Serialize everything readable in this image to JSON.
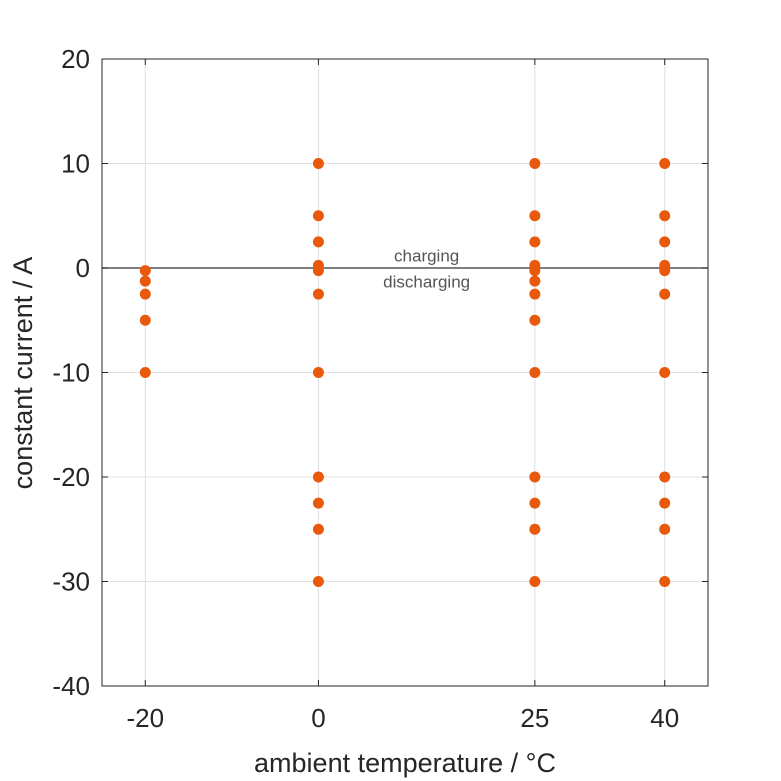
{
  "chart_data": {
    "type": "scatter",
    "title": "",
    "xlabel": "ambient temperature / °C",
    "ylabel": "constant current / A",
    "xlim": [
      -25,
      45
    ],
    "ylim": [
      -40,
      20
    ],
    "xticks": [
      -20,
      0,
      25,
      40
    ],
    "xtick_labels": [
      "-20",
      "0",
      "25",
      "40"
    ],
    "yticks": [
      20,
      10,
      0,
      -10,
      -20,
      -30,
      -40
    ],
    "ytick_labels": [
      "20",
      "10",
      "0",
      "-10",
      "-20",
      "-30",
      "-40"
    ],
    "grid": true,
    "marker_color": "#e8590c",
    "zero_line_color": "#555555",
    "annotations": [
      {
        "text": "charging",
        "x": 12.5,
        "y": 1.2
      },
      {
        "text": "discharging",
        "x": 12.5,
        "y": -1.3
      }
    ],
    "series": [
      {
        "points": [
          {
            "x": -20,
            "y": -0.25
          },
          {
            "x": -20,
            "y": -1.25
          },
          {
            "x": -20,
            "y": -2.5
          },
          {
            "x": -20,
            "y": -5
          },
          {
            "x": -20,
            "y": -10
          },
          {
            "x": 0,
            "y": 10
          },
          {
            "x": 0,
            "y": 5
          },
          {
            "x": 0,
            "y": 2.5
          },
          {
            "x": 0,
            "y": 0.25
          },
          {
            "x": 0,
            "y": -0.25
          },
          {
            "x": 0,
            "y": -2.5
          },
          {
            "x": 0,
            "y": -10
          },
          {
            "x": 0,
            "y": -20
          },
          {
            "x": 0,
            "y": -22.5
          },
          {
            "x": 0,
            "y": -25
          },
          {
            "x": 0,
            "y": -30
          },
          {
            "x": 25,
            "y": 10
          },
          {
            "x": 25,
            "y": 5
          },
          {
            "x": 25,
            "y": 2.5
          },
          {
            "x": 25,
            "y": 0.25
          },
          {
            "x": 25,
            "y": -0.25
          },
          {
            "x": 25,
            "y": -1.25
          },
          {
            "x": 25,
            "y": -2.5
          },
          {
            "x": 25,
            "y": -5
          },
          {
            "x": 25,
            "y": -10
          },
          {
            "x": 25,
            "y": -20
          },
          {
            "x": 25,
            "y": -22.5
          },
          {
            "x": 25,
            "y": -25
          },
          {
            "x": 25,
            "y": -30
          },
          {
            "x": 40,
            "y": 10
          },
          {
            "x": 40,
            "y": 5
          },
          {
            "x": 40,
            "y": 2.5
          },
          {
            "x": 40,
            "y": 0.25
          },
          {
            "x": 40,
            "y": -0.25
          },
          {
            "x": 40,
            "y": -2.5
          },
          {
            "x": 40,
            "y": -10
          },
          {
            "x": 40,
            "y": -20
          },
          {
            "x": 40,
            "y": -22.5
          },
          {
            "x": 40,
            "y": -25
          },
          {
            "x": 40,
            "y": -30
          }
        ]
      }
    ]
  }
}
